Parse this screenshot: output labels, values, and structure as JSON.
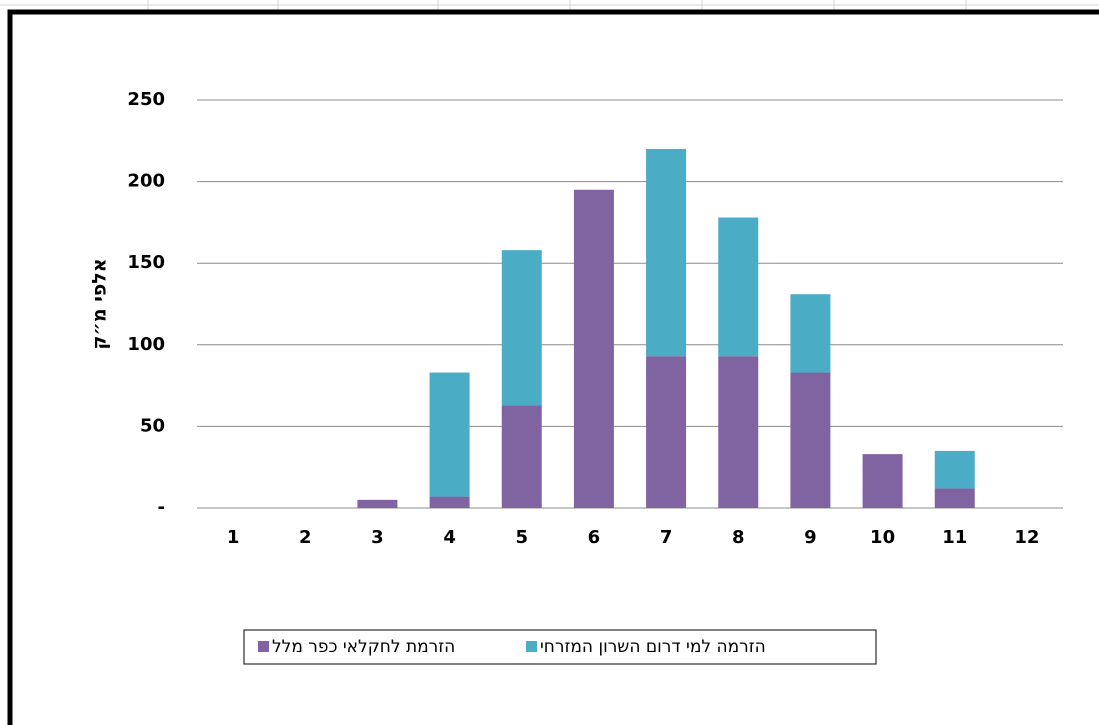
{
  "chart_data": {
    "type": "bar",
    "stacked": true,
    "y_label": "אלפי מ״ק",
    "categories": [
      "1",
      "2",
      "3",
      "4",
      "5",
      "6",
      "7",
      "8",
      "9",
      "10",
      "11",
      "12"
    ],
    "series": [
      {
        "name": "הזרמת לחקלאי כפר מלל",
        "color": "#8064a2",
        "values": [
          0,
          0,
          5,
          7,
          63,
          195,
          93,
          93,
          83,
          33,
          12,
          0
        ]
      },
      {
        "name": "הזרמה למי  דרום השרון המזרחי",
        "color": "#4bacc6",
        "values": [
          0,
          0,
          0,
          76,
          95,
          0,
          127,
          85,
          48,
          0,
          23,
          0
        ]
      }
    ],
    "ylim": [
      0,
      250
    ],
    "yticks": [
      {
        "value": 0,
        "label": "-"
      },
      50,
      100,
      150,
      200,
      250
    ],
    "grid": true
  }
}
